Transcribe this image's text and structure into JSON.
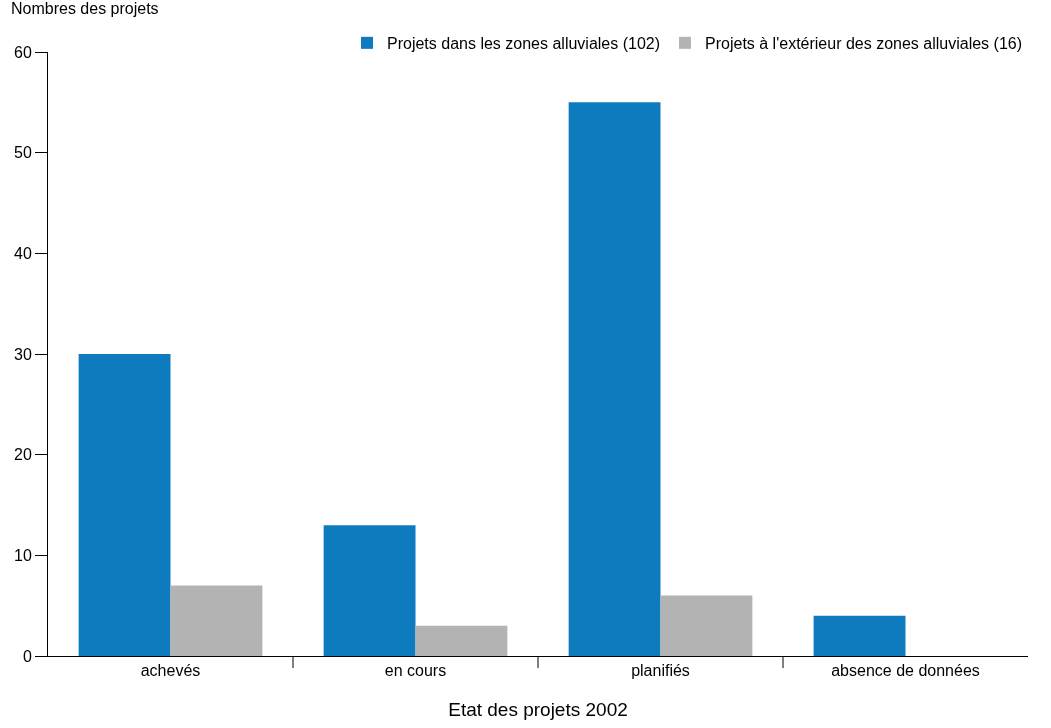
{
  "chart_data": {
    "type": "bar",
    "xlabel": "Etat des projets 2002",
    "ylabel": "Nombres des projets",
    "categories": [
      "achevés",
      "en cours",
      "planifiés",
      "absence de données"
    ],
    "series": [
      {
        "name": "Projets dans les zones alluviales (102)",
        "color": "#0f7bbf",
        "values": [
          30,
          13,
          55,
          4
        ]
      },
      {
        "name": "Projets à l'extérieur des zones alluviales (16)",
        "color": "#b3b3b4",
        "values": [
          7,
          3,
          6,
          0
        ]
      }
    ],
    "ylim": [
      0,
      60
    ],
    "yticks": [
      0,
      10,
      20,
      30,
      40,
      50,
      60
    ],
    "grid": false,
    "legend": "top right"
  }
}
